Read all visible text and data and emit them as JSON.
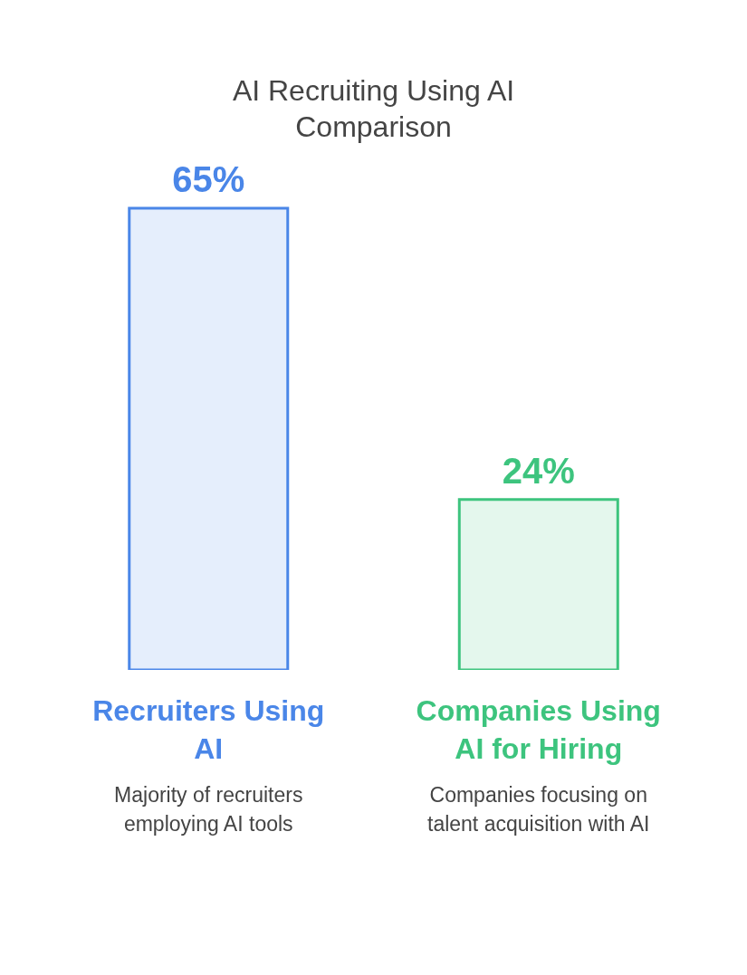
{
  "chart_data": {
    "type": "bar",
    "title": "AI Recruiting Using AI Comparison",
    "categories": [
      "Recruiters Using AI",
      "Companies Using AI for Hiring"
    ],
    "values": [
      65,
      24
    ],
    "colors": [
      "#4a86e8",
      "#3dc47e"
    ],
    "value_labels": [
      "65%",
      "24%"
    ],
    "annotations": [
      "Majority of recruiters employing AI tools",
      "Companies focusing on talent acquisition with AI"
    ]
  }
}
